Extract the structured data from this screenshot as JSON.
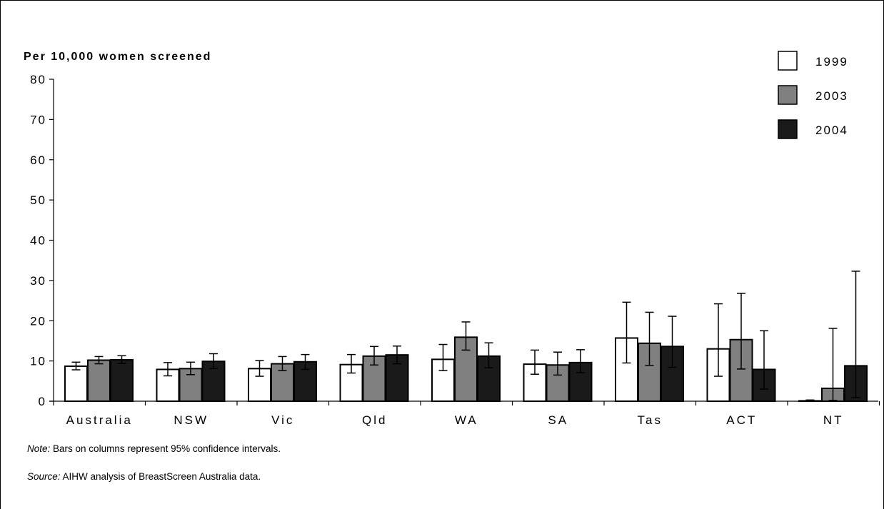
{
  "chart_data": {
    "type": "bar",
    "title": "",
    "ylabel": "Per 10,000 women screened",
    "xlabel": "",
    "ylim": [
      0,
      80
    ],
    "yticks": [
      0,
      10,
      20,
      30,
      40,
      50,
      60,
      70,
      80
    ],
    "categories": [
      "Australia",
      "NSW",
      "Vic",
      "Qld",
      "WA",
      "SA",
      "Tas",
      "ACT",
      "NT"
    ],
    "legend_position": "top-right",
    "grid": false,
    "series": [
      {
        "name": "1999",
        "color": "#ffffff",
        "values": [
          8.7,
          7.9,
          8.1,
          9.1,
          10.4,
          9.2,
          15.7,
          13.0,
          0.1
        ],
        "ci_low": [
          7.8,
          6.3,
          6.2,
          7.0,
          7.6,
          6.7,
          9.5,
          6.2,
          0.0
        ],
        "ci_high": [
          9.7,
          9.6,
          10.1,
          11.6,
          14.1,
          12.7,
          24.6,
          24.2,
          0.3
        ]
      },
      {
        "name": "2003",
        "color": "#808080",
        "values": [
          10.2,
          8.1,
          9.3,
          11.2,
          15.9,
          9.0,
          14.4,
          15.3,
          3.2
        ],
        "ci_low": [
          9.3,
          6.6,
          7.6,
          9.0,
          12.7,
          6.5,
          8.9,
          8.0,
          0.2
        ],
        "ci_high": [
          11.1,
          9.7,
          11.1,
          13.6,
          19.7,
          12.2,
          22.1,
          26.8,
          18.1
        ]
      },
      {
        "name": "2004",
        "color": "#1a1a1a",
        "values": [
          10.3,
          9.9,
          9.8,
          11.5,
          11.2,
          9.6,
          13.6,
          7.9,
          8.8
        ],
        "ci_low": [
          9.4,
          8.1,
          7.9,
          9.3,
          8.3,
          7.1,
          8.4,
          3.0,
          0.9
        ],
        "ci_high": [
          11.3,
          11.8,
          11.6,
          13.7,
          14.5,
          12.8,
          21.1,
          17.5,
          32.3
        ]
      }
    ]
  },
  "notes": {
    "note_label": "Note:",
    "note_text": " Bars on columns represent 95% confidence intervals.",
    "source_label": "Source:",
    "source_text": " AIHW analysis of BreastScreen Australia data."
  }
}
